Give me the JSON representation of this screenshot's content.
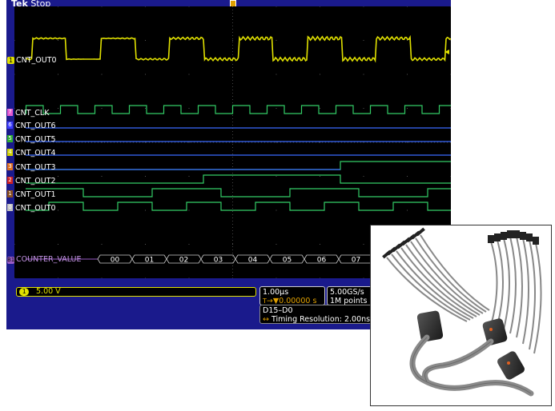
{
  "status": {
    "brand": "Tek",
    "run_state": "Stop"
  },
  "colors": {
    "background": "#1a1a8c",
    "grid": "#000000",
    "ch1": "#e0e000",
    "digital_trace": "#33cc66",
    "digital_low": "#3a6aff",
    "bus": "#9a5cc6"
  },
  "channels": {
    "ch1_label": "CNT_OUT0",
    "digital": [
      {
        "label": "CNT_CLK",
        "chip_color": "#e65ad2",
        "chip_text": "7"
      },
      {
        "label": "CNT_OUT6",
        "chip_color": "#3c3cff",
        "chip_text": "6"
      },
      {
        "label": "CNT_OUT5",
        "chip_color": "#30b030",
        "chip_text": "5"
      },
      {
        "label": "CNT_OUT4",
        "chip_color": "#d0d000",
        "chip_text": "4"
      },
      {
        "label": "CNT_OUT3",
        "chip_color": "#e07020",
        "chip_text": "3"
      },
      {
        "label": "CNT_OUT2",
        "chip_color": "#d02020",
        "chip_text": "2"
      },
      {
        "label": "CNT_OUT1",
        "chip_color": "#8a5020",
        "chip_text": "1"
      },
      {
        "label": "CNT_OUT0",
        "chip_color": "#c0c0c0",
        "chip_text": "0"
      }
    ],
    "bus_label": "COUNTER_VALUE",
    "bus_values": [
      "00",
      "01",
      "02",
      "03",
      "04",
      "05",
      "06",
      "07"
    ]
  },
  "readouts": {
    "ch1_scale": "5.00 V",
    "horizontal_scale": "1.00µs",
    "trigger_position": "→▼0.00000 s",
    "sample_rate": "5.00GS/s",
    "record_length": "1M points",
    "digital_group": "D15–D0",
    "timing_resolution": "Timing Resolution: 2.00ns"
  }
}
